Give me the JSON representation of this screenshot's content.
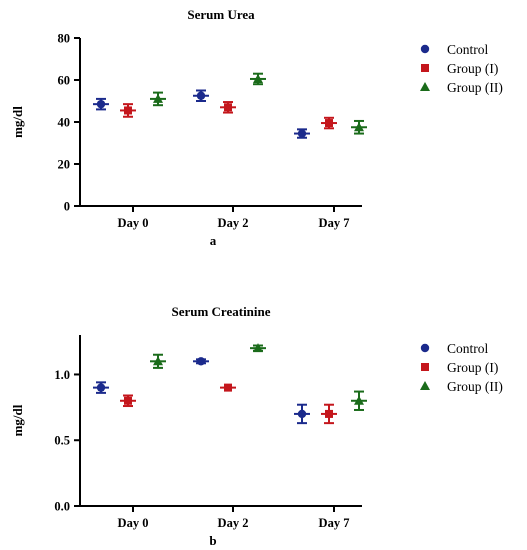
{
  "colors": {
    "control": "#1b2a8c",
    "group1": "#c4161c",
    "group2": "#1a6b1a",
    "axis": "#000000",
    "background": "#ffffff"
  },
  "chart_data": [
    {
      "type": "scatter",
      "panel_label": "a",
      "title": "Serum Urea",
      "xlabel": "",
      "ylabel": "mg/dl",
      "categories": [
        "Day 0",
        "Day 2",
        "Day 7"
      ],
      "ylim": [
        0,
        80
      ],
      "yticks": [
        "0",
        "20",
        "40",
        "60",
        "80"
      ],
      "ytick_values": [
        0,
        20,
        40,
        60,
        80
      ],
      "grid": false,
      "legend_position": "right",
      "series": [
        {
          "name": "Control",
          "marker": "circle",
          "color_key": "control",
          "values": [
            48.5,
            52.5,
            34.5
          ],
          "errors": [
            2.5,
            2.5,
            2.0
          ]
        },
        {
          "name": "Group (I)",
          "marker": "square",
          "color_key": "group1",
          "values": [
            45.5,
            47.0,
            39.5
          ],
          "errors": [
            3.0,
            2.5,
            2.5
          ]
        },
        {
          "name": "Group (II)",
          "marker": "triangle",
          "color_key": "group2",
          "values": [
            51.0,
            60.5,
            37.5
          ],
          "errors": [
            3.0,
            2.5,
            3.0
          ]
        }
      ]
    },
    {
      "type": "scatter",
      "panel_label": "b",
      "title": "Serum Creatinine",
      "xlabel": "",
      "ylabel": "mg/dl",
      "categories": [
        "Day 0",
        "Day 2",
        "Day 7"
      ],
      "ylim": [
        0,
        1.3
      ],
      "yticks": [
        "0.0",
        "0.5",
        "1.0"
      ],
      "ytick_values": [
        0,
        0.5,
        1.0
      ],
      "grid": false,
      "legend_position": "right",
      "series": [
        {
          "name": "Control",
          "marker": "circle",
          "color_key": "control",
          "values": [
            0.9,
            1.1,
            0.7
          ],
          "errors": [
            0.04,
            0.015,
            0.07
          ]
        },
        {
          "name": "Group (I)",
          "marker": "square",
          "color_key": "group1",
          "values": [
            0.8,
            0.9,
            0.7
          ],
          "errors": [
            0.04,
            0.0,
            0.07
          ]
        },
        {
          "name": "Group (II)",
          "marker": "triangle",
          "color_key": "group2",
          "values": [
            1.1,
            1.2,
            0.8
          ],
          "errors": [
            0.05,
            0.02,
            0.07
          ]
        }
      ]
    }
  ]
}
